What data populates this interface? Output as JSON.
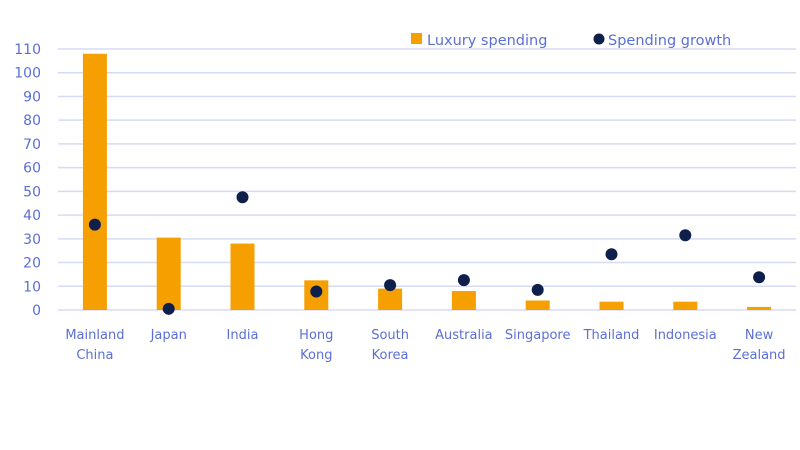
{
  "chart_data": {
    "type": "bar",
    "title": "",
    "xlabel": "",
    "ylabel": "",
    "ylim": [
      0,
      110
    ],
    "yticks": [
      0,
      10,
      20,
      30,
      40,
      50,
      60,
      70,
      80,
      90,
      100,
      110
    ],
    "grid": true,
    "legend_position": "top-right",
    "categories": [
      "Mainland China",
      "Japan",
      "India",
      "Hong Kong",
      "South Korea",
      "Australia",
      "Singapore",
      "Thailand",
      "Indonesia",
      "New Zealand"
    ],
    "category_lines": [
      [
        "Mainland",
        "China"
      ],
      [
        "Japan"
      ],
      [
        "India"
      ],
      [
        "Hong",
        "Kong"
      ],
      [
        "South",
        "Korea"
      ],
      [
        "Australia"
      ],
      [
        "Singapore"
      ],
      [
        "Thailand"
      ],
      [
        "Indonesia"
      ],
      [
        "New",
        "Zealand"
      ]
    ],
    "series": [
      {
        "name": "Luxury spending",
        "type": "bar",
        "color": "#f5a000",
        "values": [
          108,
          30.5,
          28,
          12.5,
          9,
          8,
          4,
          3.5,
          3.5,
          1.3
        ]
      },
      {
        "name": "Spending growth",
        "type": "scatter",
        "color": "#0d1f4a",
        "values": [
          36,
          0.5,
          47.5,
          7.8,
          10.5,
          12.6,
          8.5,
          23.5,
          31.5,
          13.8
        ]
      }
    ]
  },
  "legend": {
    "items": [
      {
        "label": "Luxury spending",
        "marker": "square",
        "color": "#f5a000"
      },
      {
        "label": "Spending growth",
        "marker": "circle",
        "color": "#0d1f4a"
      }
    ]
  }
}
